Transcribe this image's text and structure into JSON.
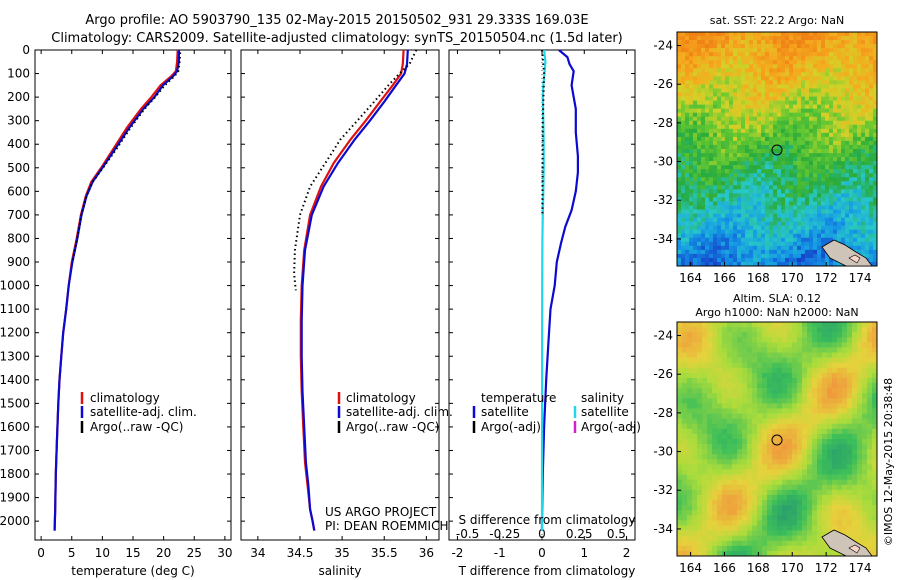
{
  "header": {
    "line1": "Argo profile: AO 5903790_135 02-May-2015 20150502_931 29.333S 169.03E",
    "line2": "Climatology: CARS2009. Satellite-adjusted climatology: synTS_20150504.nc (1.5d later)"
  },
  "footer": {
    "project": "US ARGO PROJECT",
    "pi": "PI: DEAN ROEMMICH",
    "credit": "©IMOS 12-May-2015 20:38:48"
  },
  "colors": {
    "climatology": "#e01010",
    "satellite": "#0a0ad0",
    "argo": "#000000",
    "salinity_satellite": "#22d8e8",
    "salinity_argo": "#d020d0"
  },
  "chart_data": [
    {
      "type": "line",
      "id": "temperature",
      "xlabel": "temperature (deg C)",
      "ylabel": "",
      "xlim": [
        -1,
        31
      ],
      "ylim": [
        2080,
        0
      ],
      "y_inverted": true,
      "xticks": [
        0,
        5,
        10,
        15,
        20,
        25,
        30
      ],
      "xticklabels": [
        "0",
        "5",
        "10",
        "15",
        "20",
        "25",
        "30"
      ],
      "yticks": [
        0,
        100,
        200,
        300,
        400,
        500,
        600,
        700,
        800,
        900,
        1000,
        1100,
        1200,
        1300,
        1400,
        1500,
        1600,
        1700,
        1800,
        1900,
        2000
      ],
      "yticklabels": [
        "0",
        "100",
        "200",
        "300",
        "400",
        "500",
        "600",
        "700",
        "800",
        "900",
        "1000",
        "1100",
        "1200",
        "1300",
        "1400",
        "1500",
        "1600",
        "1700",
        "1800",
        "1900",
        "2000"
      ],
      "legend": [
        "climatology",
        "satellite-adj. clim.",
        "Argo(..raw -QC)"
      ],
      "series": [
        {
          "name": "climatology",
          "style": "solid",
          "color": "#e01010",
          "x": [
            22.3,
            22.2,
            22.0,
            21.3,
            19.5,
            18.0,
            16.3,
            14.0,
            11.8,
            9.8,
            8.2,
            7.3,
            6.5,
            5.8,
            5.0,
            4.5,
            4.1,
            3.6,
            3.3,
            3.0,
            2.8,
            2.6,
            2.4,
            2.3,
            2.2
          ],
          "y": [
            0,
            50,
            90,
            110,
            150,
            200,
            250,
            330,
            420,
            500,
            560,
            620,
            700,
            800,
            900,
            1000,
            1100,
            1200,
            1300,
            1400,
            1500,
            1650,
            1800,
            1950,
            2040
          ]
        },
        {
          "name": "satellite-adj. clim.",
          "style": "solid",
          "color": "#0a0ad0",
          "x": [
            22.5,
            22.5,
            22.2,
            21.6,
            19.9,
            18.5,
            16.7,
            14.4,
            12.1,
            10.0,
            8.4,
            7.4,
            6.6,
            5.9,
            5.1,
            4.5,
            4.1,
            3.6,
            3.3,
            3.0,
            2.8,
            2.6,
            2.4,
            2.3,
            2.2
          ],
          "y": [
            0,
            50,
            90,
            110,
            150,
            200,
            250,
            330,
            420,
            500,
            560,
            620,
            700,
            800,
            900,
            1000,
            1100,
            1200,
            1300,
            1400,
            1500,
            1650,
            1800,
            1950,
            2040
          ]
        },
        {
          "name": "Argo(..raw -QC)",
          "style": "dotted",
          "color": "#000000",
          "x": [
            22.7,
            22.6,
            22.4,
            21.8,
            20.2,
            18.6,
            16.9,
            14.6,
            12.3,
            10.1,
            8.4,
            7.4,
            6.6,
            5.9,
            5.1
          ],
          "y": [
            10,
            50,
            90,
            110,
            150,
            200,
            250,
            330,
            420,
            500,
            560,
            620,
            700,
            800,
            900
          ]
        }
      ]
    },
    {
      "type": "line",
      "id": "salinity",
      "xlabel": "salinity",
      "ylabel": "",
      "xlim": [
        33.8,
        36.15
      ],
      "ylim": [
        2080,
        0
      ],
      "y_inverted": true,
      "xticks": [
        34,
        34.5,
        35,
        35.5,
        36
      ],
      "xticklabels": [
        "34",
        "34.5",
        "35",
        "35.5",
        "36"
      ],
      "legend": [
        "climatology",
        "satellite-adj. clim.",
        "Argo(..raw -QC)"
      ],
      "series": [
        {
          "name": "climatology",
          "style": "solid",
          "color": "#e01010",
          "x": [
            35.73,
            35.72,
            35.7,
            35.6,
            35.45,
            35.28,
            35.1,
            34.9,
            34.75,
            34.62,
            34.55,
            34.52,
            34.51,
            34.51,
            34.52,
            34.54,
            34.56,
            34.59,
            34.62,
            34.65,
            34.67
          ],
          "y": [
            0,
            60,
            100,
            150,
            220,
            300,
            380,
            480,
            580,
            700,
            850,
            1000,
            1150,
            1300,
            1450,
            1600,
            1750,
            1850,
            1950,
            2000,
            2040
          ]
        },
        {
          "name": "satellite-adj. clim.",
          "style": "solid",
          "color": "#0a0ad0",
          "x": [
            35.78,
            35.77,
            35.74,
            35.64,
            35.5,
            35.33,
            35.15,
            34.95,
            34.78,
            34.64,
            34.56,
            34.53,
            34.52,
            34.52,
            34.53,
            34.55,
            34.57,
            34.6,
            34.62,
            34.65,
            34.67
          ],
          "y": [
            0,
            60,
            100,
            150,
            220,
            300,
            380,
            480,
            580,
            700,
            850,
            1000,
            1150,
            1300,
            1450,
            1600,
            1750,
            1850,
            1950,
            2000,
            2040
          ]
        },
        {
          "name": "Argo(..raw -QC)",
          "style": "dotted",
          "color": "#000000",
          "x": [
            35.88,
            35.8,
            35.68,
            35.55,
            35.38,
            35.18,
            34.98,
            34.8,
            34.62,
            34.5,
            34.44,
            34.43,
            34.45
          ],
          "y": [
            0,
            60,
            100,
            150,
            220,
            300,
            380,
            480,
            580,
            700,
            850,
            950,
            1020
          ]
        }
      ]
    },
    {
      "type": "line",
      "id": "difference",
      "xlabel": "T difference from climatology",
      "xlabel_top": "S difference from climatology",
      "xlim": [
        -2.2,
        2.2
      ],
      "ylim": [
        2080,
        0
      ],
      "y_inverted": true,
      "xticks_bottom": [
        -2,
        -1,
        0,
        1,
        2
      ],
      "xticklabels_bottom": [
        "-2",
        "-1",
        "0",
        "1",
        "2"
      ],
      "xticks_top": [
        -0.5,
        -0.25,
        0,
        0.25,
        0.5
      ],
      "xticklabels_top": [
        "-0.5",
        "-0.25",
        "0",
        "0.25",
        "0.5"
      ],
      "legend_headers": [
        "temperature",
        "salinity"
      ],
      "legend": [
        "satellite",
        "Argo(-adj)",
        "satellite",
        "Argo(-adj)"
      ],
      "series": [
        {
          "name": "satellite",
          "quantity": "temperature",
          "style": "solid",
          "color": "#0a0ad0",
          "x": [
            0.4,
            0.6,
            0.65,
            0.75,
            0.7,
            0.8,
            0.8,
            0.85,
            0.85,
            0.8,
            0.7,
            0.55,
            0.45,
            0.35,
            0.3,
            0.2,
            0.15,
            0.1,
            0.05,
            0.02,
            0.0,
            0.0
          ],
          "y": [
            0,
            30,
            60,
            90,
            150,
            250,
            350,
            450,
            520,
            600,
            680,
            750,
            820,
            900,
            1000,
            1100,
            1250,
            1400,
            1600,
            1800,
            2000,
            2040
          ]
        },
        {
          "name": "satellite",
          "quantity": "salinity",
          "style": "solid",
          "color": "#22d8e8",
          "x": [
            0.05,
            0.08,
            0.06,
            0.03,
            0.02,
            0.03,
            0.04,
            0.04,
            0.03,
            0.02,
            0.01,
            0.005,
            0.003,
            0.002,
            0.001,
            0.0
          ],
          "y": [
            0,
            50,
            100,
            150,
            200,
            300,
            400,
            500,
            600,
            700,
            800,
            1000,
            1200,
            1500,
            1800,
            2040
          ]
        },
        {
          "name": "Argo(-adj)",
          "quantity": "temperature",
          "style": "dotted",
          "color": "#000000",
          "x": [
            0.0,
            0.05,
            0.02,
            0.01
          ],
          "y": [
            0,
            100,
            300,
            700
          ]
        }
      ]
    },
    {
      "type": "heatmap",
      "id": "sst_map",
      "title": "sat. SST: 22.2 Argo: NaN",
      "xlim": [
        163.2,
        175
      ],
      "ylim": [
        -35.4,
        -23.3
      ],
      "xticks": [
        164,
        166,
        168,
        170,
        172,
        174
      ],
      "xticklabels": [
        "164",
        "166",
        "168",
        "170",
        "172",
        "174"
      ],
      "yticks": [
        -24,
        -26,
        -28,
        -30,
        -32,
        -34
      ],
      "yticklabels": [
        "-24",
        "-26",
        "-28",
        "-30",
        "-32",
        "-34"
      ],
      "marker": {
        "lon": 169.03,
        "lat": -29.333
      }
    },
    {
      "type": "heatmap",
      "id": "sla_map",
      "title_line1": "Altim. SLA: 0.12",
      "title_line2": "Argo h1000: NaN h2000: NaN",
      "xlim": [
        163.2,
        175
      ],
      "ylim": [
        -35.4,
        -23.3
      ],
      "xticks": [
        164,
        166,
        168,
        170,
        172,
        174
      ],
      "xticklabels": [
        "164",
        "166",
        "168",
        "170",
        "172",
        "174"
      ],
      "yticks": [
        -24,
        -26,
        -28,
        -30,
        -32,
        -34
      ],
      "yticklabels": [
        "-24",
        "-26",
        "-28",
        "-30",
        "-32",
        "-34"
      ],
      "marker": {
        "lon": 169.03,
        "lat": -29.333
      }
    }
  ]
}
